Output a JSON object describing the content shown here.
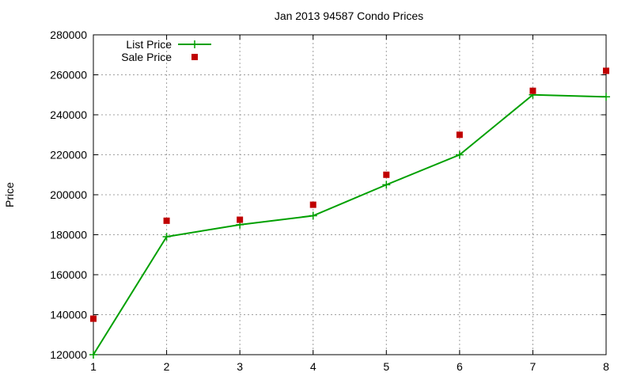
{
  "chart_data": {
    "type": "line",
    "title": "Jan 2013 94587 Condo Prices",
    "xlabel": "",
    "ylabel": "Price",
    "xlim": [
      1,
      8
    ],
    "ylim": [
      120000,
      280000
    ],
    "x_ticks": [
      "1",
      "2",
      "3",
      "4",
      "5",
      "6",
      "7",
      "8"
    ],
    "y_ticks": [
      "120000",
      "140000",
      "160000",
      "180000",
      "200000",
      "220000",
      "240000",
      "260000",
      "280000"
    ],
    "grid": true,
    "legend_position": "top-left",
    "x": [
      1,
      2,
      3,
      4,
      5,
      6,
      7,
      8
    ],
    "series": [
      {
        "name": "List Price",
        "style": "line-with-plus-markers",
        "color": "#00a000",
        "values": [
          120000,
          179000,
          185000,
          189500,
          205000,
          220000,
          250000,
          249000
        ]
      },
      {
        "name": "Sale Price",
        "style": "square-markers",
        "color": "#c00000",
        "values": [
          138000,
          187000,
          187500,
          195000,
          210000,
          230000,
          252000,
          262000
        ]
      }
    ]
  }
}
